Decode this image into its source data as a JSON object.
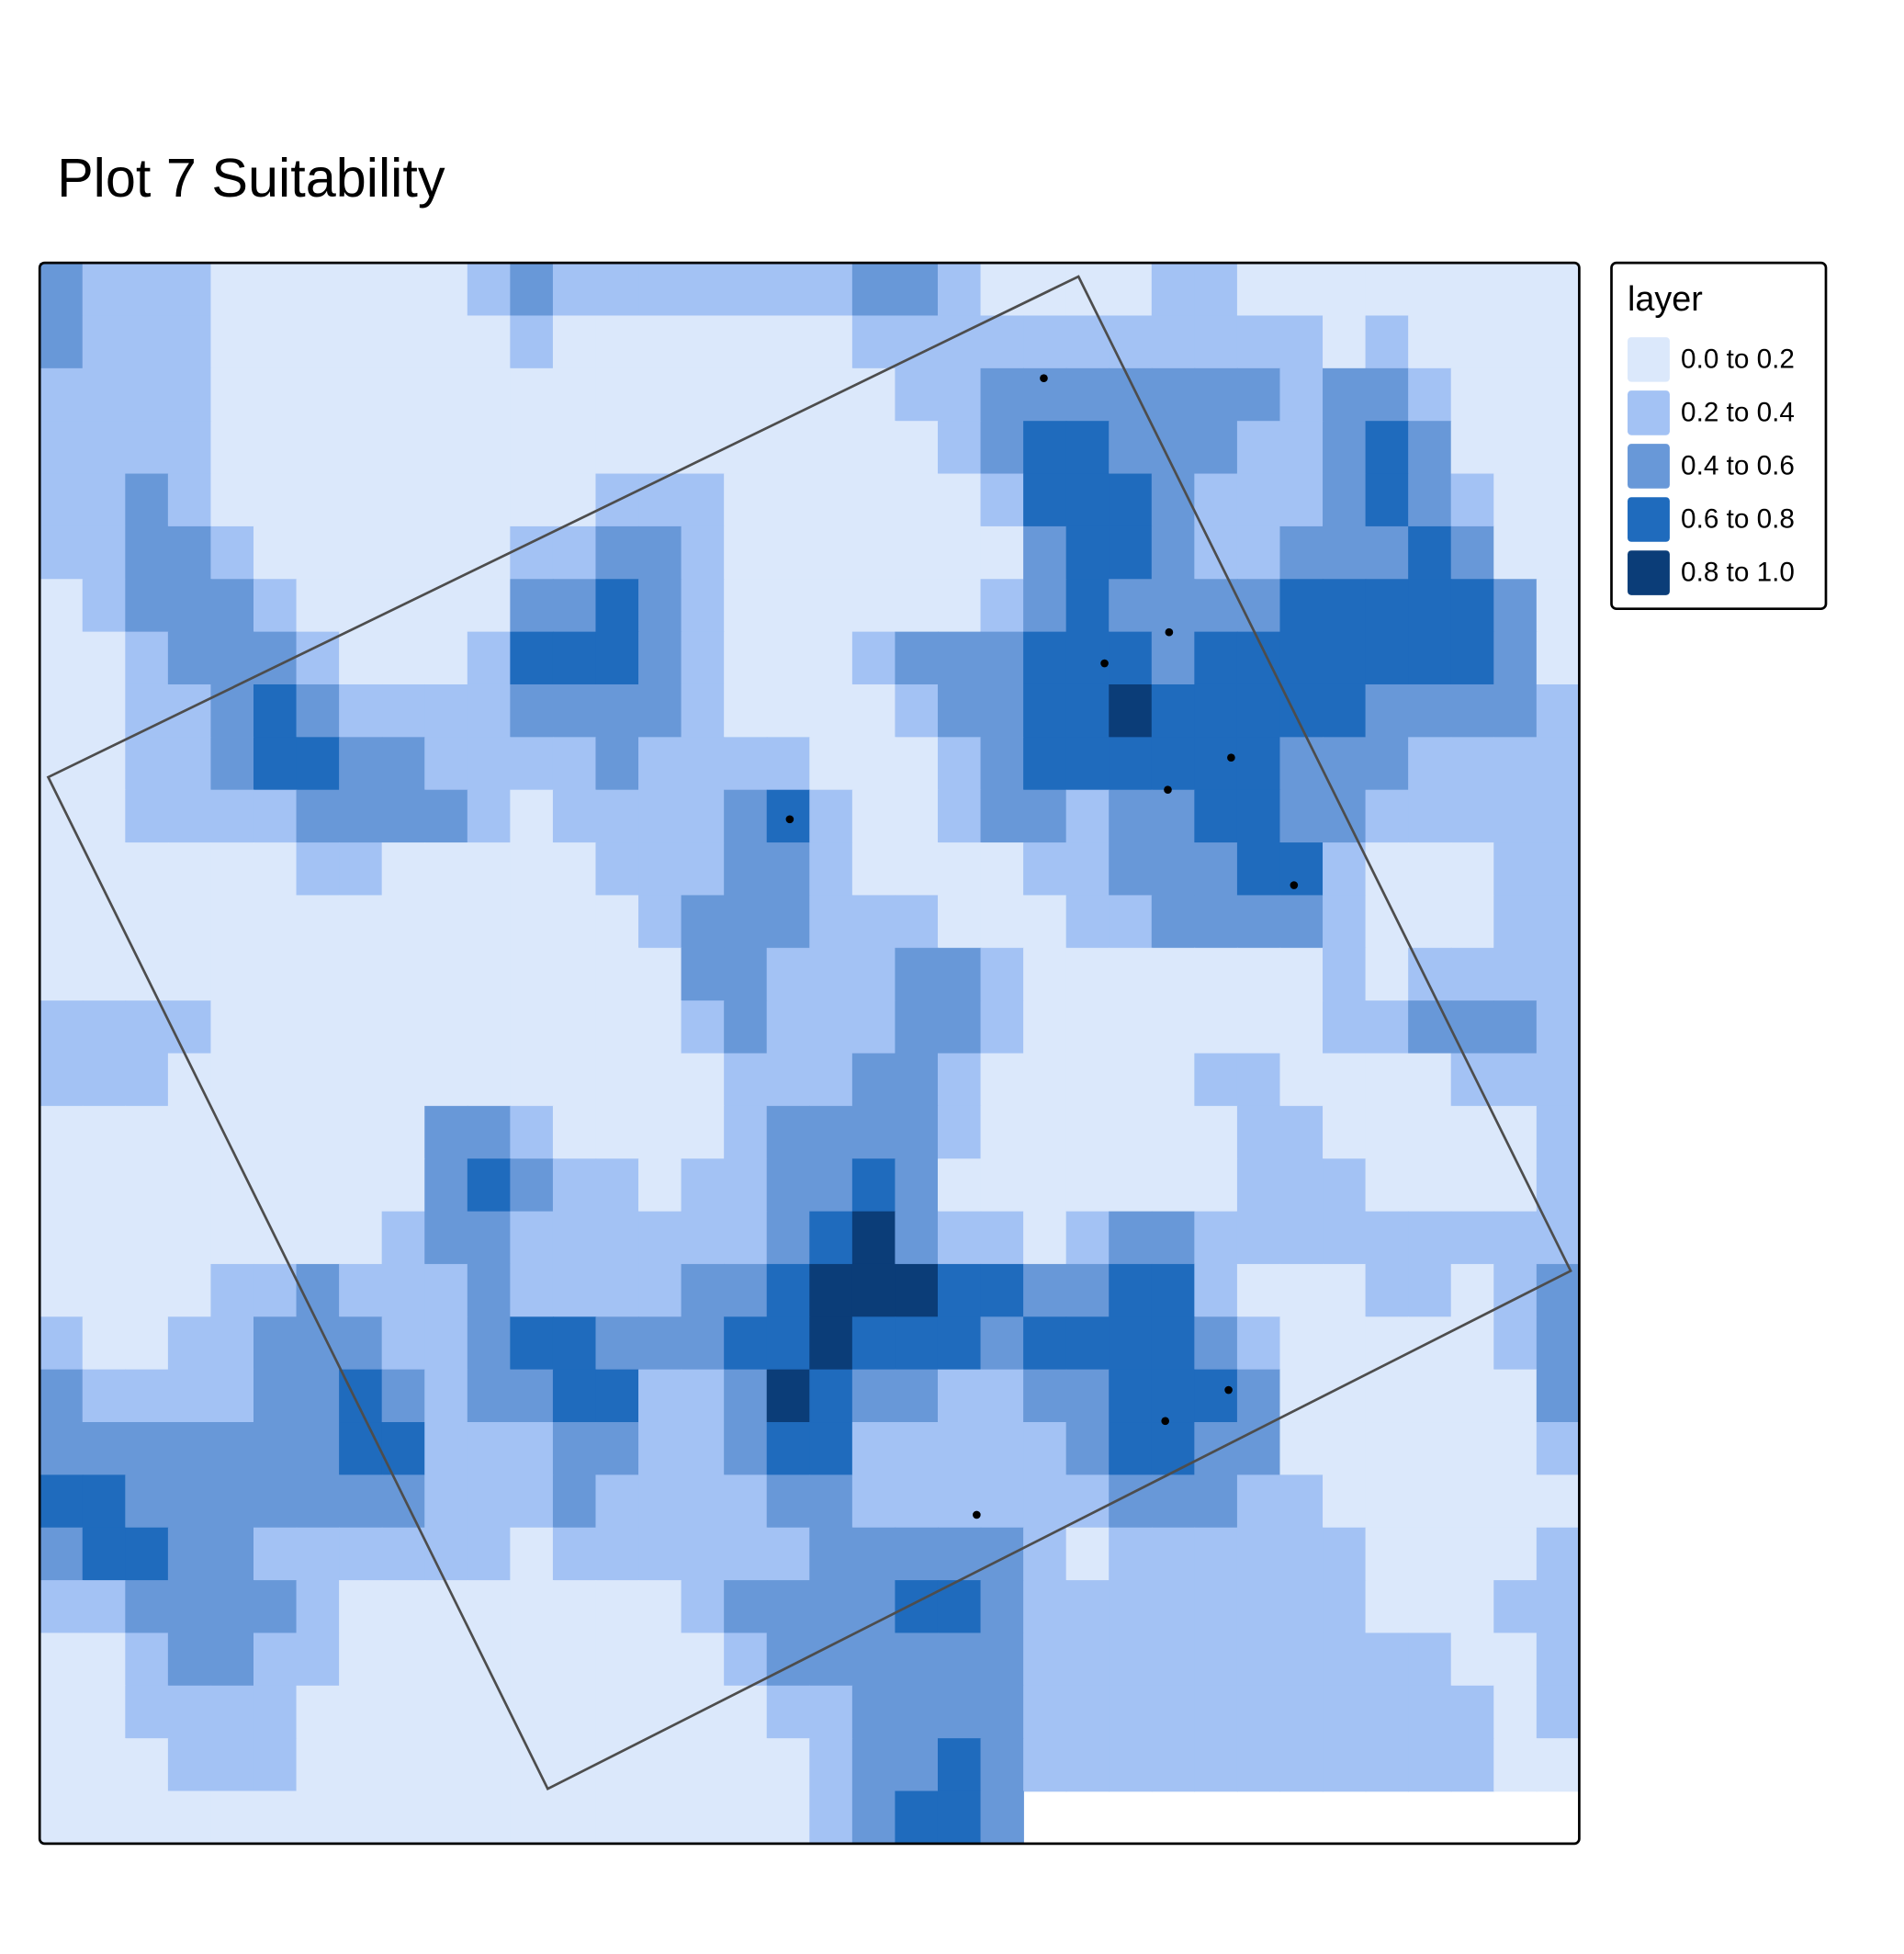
{
  "title": "Plot 7 Suitability",
  "legend": {
    "title": "layer",
    "classes": [
      {
        "label": "0.0 to 0.2",
        "color": "#dbe8fb"
      },
      {
        "label": "0.2 to 0.4",
        "color": "#a3c2f4"
      },
      {
        "label": "0.4 to 0.6",
        "color": "#6898d8"
      },
      {
        "label": "0.6 to 0.8",
        "color": "#1f6bbd"
      },
      {
        "label": "0.8 to 1.0",
        "color": "#0b3d78"
      }
    ]
  },
  "raster": {
    "rows": [
      [
        2,
        1,
        1,
        1,
        0,
        0,
        0,
        0,
        0,
        0,
        1,
        2,
        1,
        1,
        1,
        1,
        1,
        1,
        1,
        2,
        2,
        1,
        0,
        0,
        0,
        0,
        1,
        1,
        0,
        0,
        0,
        0,
        0,
        0,
        0,
        0
      ],
      [
        2,
        1,
        1,
        1,
        0,
        0,
        0,
        0,
        0,
        0,
        0,
        1,
        0,
        0,
        0,
        0,
        0,
        0,
        0,
        1,
        1,
        1,
        1,
        1,
        1,
        1,
        1,
        1,
        1,
        1,
        0,
        1,
        0,
        0,
        0,
        0
      ],
      [
        1,
        1,
        1,
        1,
        0,
        0,
        0,
        0,
        0,
        0,
        0,
        0,
        0,
        0,
        0,
        0,
        0,
        0,
        0,
        0,
        1,
        1,
        2,
        2,
        2,
        2,
        2,
        2,
        2,
        1,
        2,
        2,
        1,
        0,
        0,
        0
      ],
      [
        1,
        1,
        1,
        1,
        0,
        0,
        0,
        0,
        0,
        0,
        0,
        0,
        0,
        0,
        0,
        0,
        0,
        0,
        0,
        0,
        0,
        1,
        2,
        3,
        3,
        2,
        2,
        2,
        1,
        1,
        2,
        3,
        2,
        0,
        0,
        0
      ],
      [
        1,
        1,
        2,
        1,
        0,
        0,
        0,
        0,
        0,
        0,
        0,
        0,
        0,
        1,
        1,
        1,
        0,
        0,
        0,
        0,
        0,
        0,
        1,
        3,
        3,
        3,
        2,
        1,
        1,
        1,
        2,
        3,
        2,
        1,
        0,
        0
      ],
      [
        1,
        1,
        2,
        2,
        1,
        0,
        0,
        0,
        0,
        0,
        0,
        1,
        1,
        2,
        2,
        1,
        0,
        0,
        0,
        0,
        0,
        0,
        0,
        2,
        3,
        3,
        2,
        1,
        1,
        2,
        2,
        2,
        3,
        2,
        0,
        0
      ],
      [
        0,
        1,
        2,
        2,
        2,
        1,
        0,
        0,
        0,
        0,
        0,
        2,
        2,
        3,
        2,
        1,
        0,
        0,
        0,
        0,
        0,
        0,
        1,
        2,
        3,
        2,
        2,
        2,
        2,
        3,
        3,
        3,
        3,
        3,
        2,
        0
      ],
      [
        0,
        0,
        1,
        2,
        2,
        2,
        1,
        0,
        0,
        0,
        1,
        3,
        3,
        3,
        2,
        1,
        0,
        0,
        0,
        1,
        2,
        2,
        2,
        3,
        3,
        3,
        2,
        3,
        3,
        3,
        3,
        3,
        3,
        3,
        2,
        0
      ],
      [
        0,
        0,
        1,
        1,
        2,
        3,
        2,
        1,
        1,
        1,
        1,
        2,
        2,
        2,
        2,
        1,
        0,
        0,
        0,
        0,
        1,
        2,
        2,
        3,
        3,
        4,
        3,
        3,
        3,
        3,
        3,
        2,
        2,
        2,
        2,
        1
      ],
      [
        0,
        0,
        1,
        1,
        2,
        3,
        3,
        2,
        2,
        1,
        1,
        1,
        1,
        2,
        1,
        1,
        1,
        1,
        0,
        0,
        0,
        1,
        2,
        3,
        3,
        3,
        3,
        3,
        3,
        2,
        2,
        2,
        1,
        1,
        1,
        1
      ],
      [
        0,
        0,
        1,
        1,
        1,
        1,
        2,
        2,
        2,
        2,
        1,
        0,
        1,
        1,
        1,
        1,
        2,
        3,
        1,
        0,
        0,
        1,
        2,
        2,
        1,
        2,
        2,
        3,
        3,
        2,
        2,
        1,
        1,
        1,
        1,
        1
      ],
      [
        0,
        0,
        0,
        0,
        0,
        0,
        1,
        1,
        0,
        0,
        0,
        0,
        0,
        1,
        1,
        1,
        2,
        2,
        1,
        0,
        0,
        0,
        0,
        1,
        1,
        2,
        2,
        2,
        3,
        3,
        1,
        0,
        0,
        0,
        1,
        1
      ],
      [
        0,
        0,
        0,
        0,
        0,
        0,
        0,
        0,
        0,
        0,
        0,
        0,
        0,
        0,
        1,
        2,
        2,
        2,
        1,
        1,
        1,
        0,
        0,
        0,
        1,
        1,
        2,
        2,
        2,
        2,
        1,
        0,
        0,
        0,
        1,
        1
      ],
      [
        0,
        0,
        0,
        0,
        0,
        0,
        0,
        0,
        0,
        0,
        0,
        0,
        0,
        0,
        0,
        2,
        2,
        1,
        1,
        1,
        2,
        2,
        1,
        0,
        0,
        0,
        0,
        0,
        0,
        0,
        1,
        0,
        1,
        1,
        1,
        1
      ],
      [
        1,
        1,
        1,
        1,
        0,
        0,
        0,
        0,
        0,
        0,
        0,
        0,
        0,
        0,
        0,
        1,
        2,
        1,
        1,
        1,
        2,
        2,
        1,
        0,
        0,
        0,
        0,
        0,
        0,
        0,
        1,
        1,
        2,
        2,
        2,
        1
      ],
      [
        1,
        1,
        1,
        0,
        0,
        0,
        0,
        0,
        0,
        0,
        0,
        0,
        0,
        0,
        0,
        0,
        1,
        1,
        1,
        2,
        2,
        1,
        0,
        0,
        0,
        0,
        0,
        1,
        1,
        0,
        0,
        0,
        0,
        1,
        1,
        1
      ],
      [
        0,
        0,
        0,
        0,
        0,
        0,
        0,
        0,
        0,
        2,
        2,
        1,
        0,
        0,
        0,
        0,
        1,
        2,
        2,
        2,
        2,
        1,
        0,
        0,
        0,
        0,
        0,
        0,
        1,
        1,
        0,
        0,
        0,
        0,
        0,
        1
      ],
      [
        0,
        0,
        0,
        0,
        0,
        0,
        0,
        0,
        0,
        2,
        3,
        2,
        1,
        1,
        0,
        1,
        1,
        2,
        2,
        3,
        2,
        0,
        0,
        0,
        0,
        0,
        0,
        0,
        1,
        1,
        1,
        0,
        0,
        0,
        0,
        1
      ],
      [
        0,
        0,
        0,
        0,
        0,
        0,
        0,
        0,
        1,
        2,
        2,
        1,
        1,
        1,
        1,
        1,
        1,
        2,
        3,
        4,
        2,
        1,
        1,
        0,
        1,
        2,
        2,
        1,
        1,
        1,
        1,
        1,
        1,
        1,
        1,
        1
      ],
      [
        0,
        0,
        0,
        0,
        1,
        1,
        2,
        1,
        1,
        1,
        2,
        1,
        1,
        1,
        1,
        2,
        2,
        3,
        4,
        4,
        4,
        3,
        3,
        2,
        2,
        3,
        3,
        1,
        0,
        0,
        0,
        1,
        1,
        0,
        1,
        2
      ],
      [
        1,
        0,
        0,
        1,
        1,
        2,
        2,
        2,
        1,
        1,
        2,
        3,
        3,
        2,
        2,
        2,
        3,
        3,
        4,
        3,
        3,
        3,
        2,
        3,
        3,
        3,
        3,
        2,
        1,
        0,
        0,
        0,
        0,
        0,
        1,
        2
      ],
      [
        2,
        1,
        1,
        1,
        1,
        2,
        2,
        3,
        2,
        1,
        2,
        2,
        3,
        3,
        1,
        1,
        2,
        4,
        3,
        2,
        2,
        1,
        1,
        2,
        2,
        3,
        3,
        3,
        2,
        0,
        0,
        0,
        0,
        0,
        0,
        2
      ],
      [
        2,
        2,
        2,
        2,
        2,
        2,
        2,
        3,
        3,
        1,
        1,
        1,
        2,
        2,
        1,
        1,
        2,
        3,
        3,
        1,
        1,
        1,
        1,
        1,
        2,
        3,
        3,
        2,
        2,
        0,
        0,
        0,
        0,
        0,
        0,
        1
      ],
      [
        3,
        3,
        2,
        2,
        2,
        2,
        2,
        2,
        2,
        1,
        1,
        1,
        2,
        1,
        1,
        1,
        1,
        2,
        2,
        1,
        1,
        1,
        1,
        1,
        1,
        2,
        2,
        2,
        1,
        1,
        0,
        0,
        0,
        0,
        0,
        0
      ],
      [
        2,
        3,
        3,
        2,
        2,
        1,
        1,
        1,
        1,
        1,
        1,
        0,
        1,
        1,
        1,
        1,
        1,
        1,
        2,
        2,
        2,
        2,
        2,
        1,
        0,
        1,
        1,
        1,
        1,
        1,
        1,
        0,
        0,
        0,
        0,
        1
      ],
      [
        1,
        1,
        2,
        2,
        2,
        2,
        1,
        0,
        0,
        0,
        0,
        0,
        0,
        0,
        0,
        1,
        2,
        2,
        2,
        2,
        3,
        3,
        2,
        1,
        1,
        1,
        1,
        1,
        1,
        1,
        1,
        0,
        0,
        0,
        1,
        1
      ],
      [
        0,
        0,
        1,
        2,
        2,
        1,
        1,
        0,
        0,
        0,
        0,
        0,
        0,
        0,
        0,
        0,
        1,
        2,
        2,
        2,
        2,
        2,
        2,
        1,
        1,
        1,
        1,
        1,
        1,
        1,
        1,
        1,
        1,
        0,
        0,
        1
      ],
      [
        0,
        0,
        1,
        1,
        1,
        1,
        0,
        0,
        0,
        0,
        0,
        0,
        0,
        0,
        0,
        0,
        0,
        1,
        1,
        2,
        2,
        2,
        2,
        1,
        1,
        1,
        1,
        1,
        1,
        1,
        1,
        1,
        1,
        1,
        0,
        1
      ],
      [
        0,
        0,
        0,
        1,
        1,
        1,
        0,
        0,
        0,
        0,
        0,
        0,
        0,
        0,
        0,
        0,
        0,
        0,
        1,
        2,
        2,
        3,
        2,
        1,
        1,
        1,
        1,
        1,
        1,
        1,
        1,
        1,
        1,
        1,
        0,
        0
      ],
      [
        0,
        0,
        0,
        0,
        0,
        0,
        0,
        0,
        0,
        0,
        0,
        0,
        0,
        0,
        0,
        0,
        0,
        0,
        1,
        2,
        3,
        3,
        2,
        null,
        null,
        null,
        null,
        null,
        null,
        null,
        null,
        null,
        null,
        null,
        null,
        null
      ]
    ]
  },
  "points": {
    "x": [
      23.48,
      26.41,
      24.9,
      27.86,
      26.38,
      17.54,
      29.33,
      27.8,
      26.32,
      21.91
    ],
    "y": [
      2.19,
      7.01,
      7.6,
      9.39,
      10.0,
      10.56,
      11.81,
      21.39,
      21.98,
      23.76
    ]
  },
  "boundary": {
    "x": [
      24.29,
      35.8,
      11.88,
      0.2
    ],
    "y": [
      0.26,
      19.13,
      28.96,
      9.76
    ]
  }
}
